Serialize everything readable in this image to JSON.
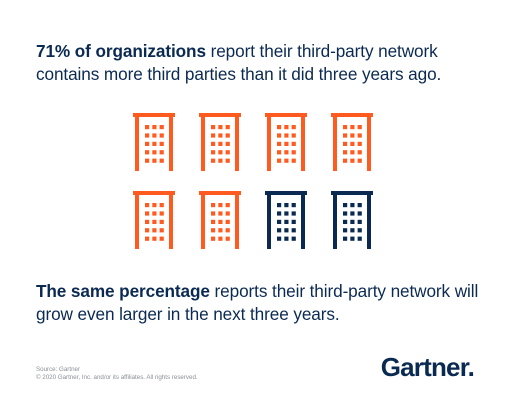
{
  "headline_top": {
    "bold": "71% of organizations",
    "rest": " report their third-party network contains more third parties than it did three years ago."
  },
  "headline_bottom": {
    "bold": "The same percentage",
    "rest": " reports their third-party network will grow even larger in the next three years."
  },
  "chart_data": {
    "type": "pictograph",
    "total_icons": 8,
    "highlighted_icons": 6,
    "percentage": 71,
    "icon": "building-icon",
    "rows": 2,
    "columns": 4
  },
  "colors": {
    "highlight": "#ff5a1f",
    "base": "#0b2a52"
  },
  "footer": {
    "source": "Source: Gartner",
    "copyright": "© 2020 Gartner, Inc. and/or its affiliates. All rights reserved."
  },
  "logo": {
    "text": "Gartner."
  }
}
